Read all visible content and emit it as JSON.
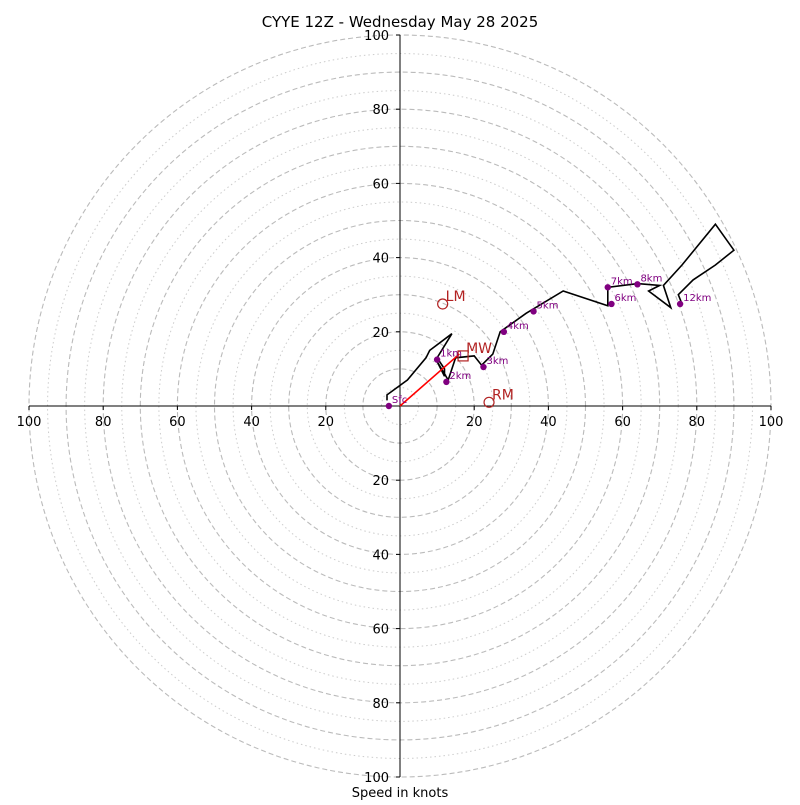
{
  "chart_data": {
    "type": "scatter",
    "title": "CYYE 12Z - Wednesday May 28 2025",
    "xlabel": "Speed in knots",
    "ylabel": "",
    "xlim": [
      -100,
      100
    ],
    "ylim": [
      -100,
      100
    ],
    "grid": true,
    "rings_dashed": [
      10,
      20,
      30,
      40,
      50,
      60,
      70,
      80,
      90,
      100
    ],
    "rings_dotted": [
      5,
      15,
      25,
      35,
      45,
      55,
      65,
      75,
      85,
      95
    ],
    "axis_ticks": [
      20,
      40,
      60,
      80,
      100
    ],
    "x_tick_labels": [
      "100",
      "80",
      "60",
      "40",
      "20",
      "",
      "20",
      "40",
      "60",
      "80",
      "100"
    ],
    "y_tick_labels": [
      "100",
      "80",
      "60",
      "40",
      "20",
      "",
      "20",
      "40",
      "60",
      "80",
      "100"
    ],
    "hodograph_color": "#000000",
    "hodograph": [
      {
        "u": -3.5,
        "v": 1.5
      },
      {
        "u": -3.5,
        "v": 3
      },
      {
        "u": 2,
        "v": 7
      },
      {
        "u": 7,
        "v": 13
      },
      {
        "u": 8,
        "v": 15
      },
      {
        "u": 14,
        "v": 19.5
      },
      {
        "u": 10,
        "v": 13
      },
      {
        "u": 12,
        "v": 10
      },
      {
        "u": 12,
        "v": 8
      },
      {
        "u": 10,
        "v": 12
      },
      {
        "u": 13,
        "v": 7
      },
      {
        "u": 15,
        "v": 13
      },
      {
        "u": 20,
        "v": 13.5
      },
      {
        "u": 22,
        "v": 11
      },
      {
        "u": 25,
        "v": 14
      },
      {
        "u": 27,
        "v": 20
      },
      {
        "u": 34,
        "v": 25
      },
      {
        "u": 44,
        "v": 31
      },
      {
        "u": 56,
        "v": 27
      },
      {
        "u": 56,
        "v": 32
      },
      {
        "u": 64,
        "v": 33
      },
      {
        "u": 70,
        "v": 32.5
      },
      {
        "u": 67,
        "v": 31
      },
      {
        "u": 73,
        "v": 26.5
      },
      {
        "u": 71,
        "v": 32.5
      },
      {
        "u": 76,
        "v": 38
      },
      {
        "u": 85,
        "v": 49
      },
      {
        "u": 90,
        "v": 42
      },
      {
        "u": 85,
        "v": 38
      },
      {
        "u": 79,
        "v": 34
      },
      {
        "u": 75,
        "v": 30
      },
      {
        "u": 76,
        "v": 27.5
      }
    ],
    "height_markers_color": "#800080",
    "height_markers": [
      {
        "label": "Sfc",
        "u": -3,
        "v": 0
      },
      {
        "label": "1km",
        "u": 10,
        "v": 12.5
      },
      {
        "label": "2km",
        "u": 12.5,
        "v": 6.5
      },
      {
        "label": "3km",
        "u": 22.5,
        "v": 10.5
      },
      {
        "label": "4km",
        "u": 28,
        "v": 20
      },
      {
        "label": "5km",
        "u": 36,
        "v": 25.5
      },
      {
        "label": "6km",
        "u": 57,
        "v": 27.5
      },
      {
        "label": "7km",
        "u": 56,
        "v": 32
      },
      {
        "label": "8km",
        "u": 64,
        "v": 32.8
      },
      {
        "label": "12km",
        "u": 75.5,
        "v": 27.5
      }
    ],
    "mean_wind_vector": {
      "color": "#ff0000",
      "from": {
        "u": 0,
        "v": 0
      },
      "to": {
        "u": 16,
        "v": 14
      }
    },
    "storm_motion_color": "#b22222",
    "storm_motion": [
      {
        "label": "LM",
        "u": 11.5,
        "v": 27.5,
        "marker": "circle"
      },
      {
        "label": "MW",
        "u": 17,
        "v": 13.5,
        "marker": "square"
      },
      {
        "label": "RM",
        "u": 24,
        "v": 1,
        "marker": "circle"
      }
    ]
  }
}
